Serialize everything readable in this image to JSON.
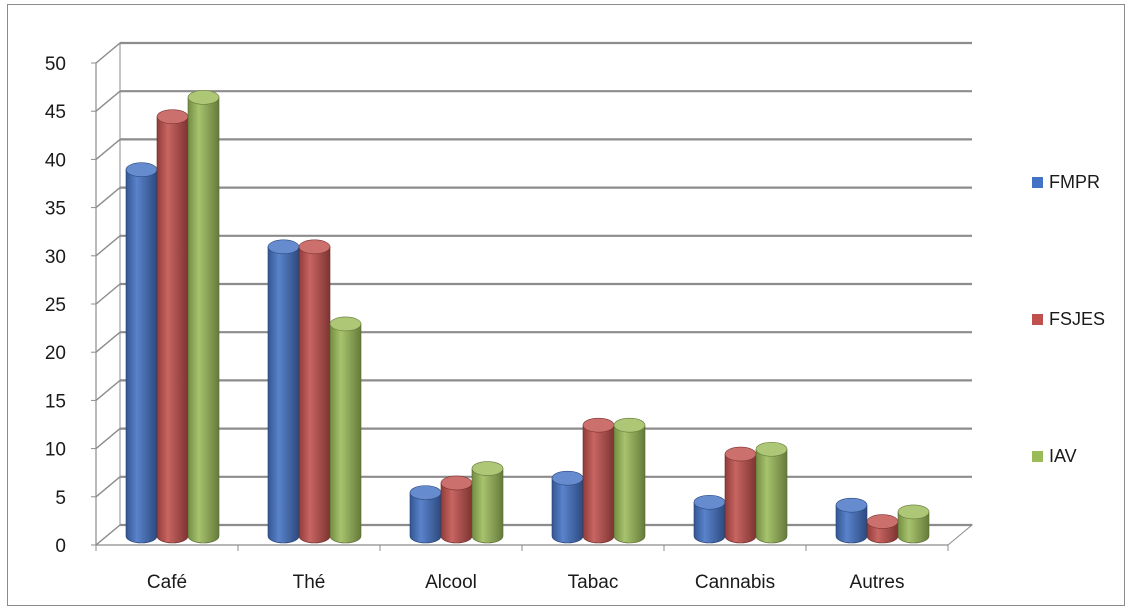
{
  "chart_data": {
    "type": "bar",
    "style": "3d-cylinder",
    "title": "",
    "xlabel": "",
    "ylabel": "",
    "categories": [
      "Café",
      "Thé",
      "Alcool",
      "Tabac",
      "Cannabis",
      "Autres"
    ],
    "series": [
      {
        "name": "FMPR",
        "values": [
          38,
          30,
          4.5,
          6,
          3.5,
          3.2
        ],
        "color": "#4472c4"
      },
      {
        "name": "FSJES",
        "values": [
          43.5,
          30,
          5.5,
          11.5,
          8.5,
          1.5
        ],
        "color": "#c0504d"
      },
      {
        "name": "IAV",
        "values": [
          45.5,
          22,
          7,
          11.5,
          9,
          2.5
        ],
        "color": "#9bbb59"
      }
    ],
    "ylim": [
      0,
      50
    ],
    "yticks": [
      0,
      5,
      10,
      15,
      20,
      25,
      30,
      35,
      40,
      45,
      50
    ],
    "grid": true,
    "legend_position": "right"
  }
}
